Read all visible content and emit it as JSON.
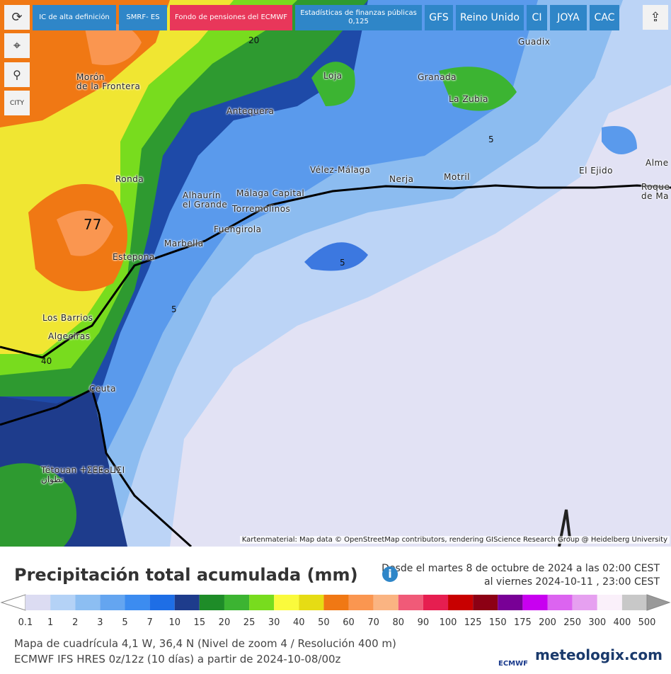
{
  "toolbar": {
    "buttons": [
      {
        "label": "IC de alta definición"
      },
      {
        "label": "SMRF- ES"
      },
      {
        "label": "Fondo de pensiones del ECMWF"
      },
      {
        "label": "Estadísticas de finanzas públicas",
        "sub": "0,125"
      },
      {
        "label": "GFS"
      },
      {
        "label": "Reino Unido"
      },
      {
        "label": "CI"
      },
      {
        "label": "JOYA"
      },
      {
        "label": "CAC"
      }
    ],
    "city_button": "CITY"
  },
  "map": {
    "places": [
      {
        "name": "Morón\nde la Frontera"
      },
      {
        "name": "Antequera"
      },
      {
        "name": "Loja"
      },
      {
        "name": "Granada"
      },
      {
        "name": "La Zubia"
      },
      {
        "name": "Guadix"
      },
      {
        "name": "Ronda"
      },
      {
        "name": "Vélez-Málaga"
      },
      {
        "name": "Nerja"
      },
      {
        "name": "Motril"
      },
      {
        "name": "El Ejido"
      },
      {
        "name": "Alme"
      },
      {
        "name": "Roque\nde Ma"
      },
      {
        "name": "Alhaurín\nel Grande"
      },
      {
        "name": "Málaga Capital"
      },
      {
        "name": "Torremolinos"
      },
      {
        "name": "Fuengirola"
      },
      {
        "name": "Marbella"
      },
      {
        "name": "Estepona"
      },
      {
        "name": "Los Barrios"
      },
      {
        "name": "Algeciras"
      },
      {
        "name": "Ceuta"
      },
      {
        "name": "Tétouan ⵜⵉⵟⵟⴰⵡⵉⵏ\nتطوان"
      }
    ],
    "contours": [
      "20",
      "5",
      "77",
      "5",
      "5",
      "40"
    ],
    "attribution": "Kartenmaterial: Map data © OpenStreetMap contributors, rendering GIScience Research Group @ Heidelberg University"
  },
  "legend": {
    "title": "Precipitación total acumulada (mm)",
    "period": [
      "Desde el martes 8 de octubre de 2024 a  las 02:00  CEST",
      "al viernes 2024-10-11 , 23:00  CEST"
    ],
    "labels": [
      "0.1",
      "1",
      "2",
      "3",
      "5",
      "7",
      "10",
      "15",
      "20",
      "25",
      "30",
      "40",
      "50",
      "60",
      "70",
      "80",
      "90",
      "100",
      "125",
      "150",
      "175",
      "200",
      "250",
      "300",
      "400",
      "500"
    ],
    "colors": [
      "#dcdcf2",
      "#b4d2f6",
      "#8cbef2",
      "#64a5f0",
      "#3c8cf0",
      "#1e6ee6",
      "#1e3c8c",
      "#1e8c28",
      "#3cb432",
      "#78dc1e",
      "#fafa3c",
      "#e6dc14",
      "#f07814",
      "#fa9650",
      "#fab482",
      "#f05a78",
      "#e61e50",
      "#c80000",
      "#8c0014",
      "#780096",
      "#c800f0",
      "#dc64f0",
      "#e6a0f0",
      "#faf0fa",
      "#c8c8c8"
    ]
  },
  "footer": {
    "lines": [
      "Mapa de cuadrícula 4,1 W, 36,4 N (Nivel de zoom 4 / Resolución 400 m)",
      "ECMWF IFS HRES 0z/12z (10 días) a partir de 2024-10-08/00z"
    ],
    "logos": [
      "ECMWF",
      "meteologix.com"
    ]
  }
}
